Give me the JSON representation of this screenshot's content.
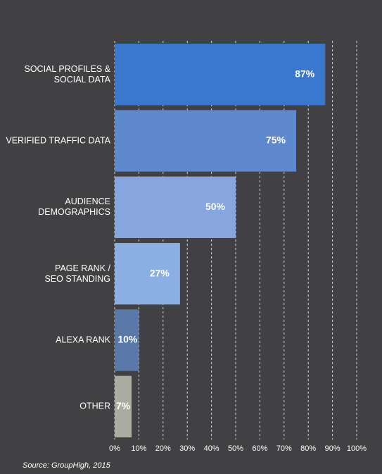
{
  "chart_data": {
    "type": "bar",
    "orientation": "horizontal",
    "categories": [
      "SOCIAL PROFILES &\nSOCIAL DATA",
      "VERIFIED TRAFFIC DATA",
      "AUDIENCE\nDEMOGRAPHICS",
      "PAGE RANK /\nSEO STANDING",
      "ALEXA RANK",
      "OTHER"
    ],
    "values": [
      87,
      75,
      50,
      27,
      10,
      7
    ],
    "value_labels": [
      "87%",
      "75%",
      "50%",
      "27%",
      "10%",
      "7%"
    ],
    "colors": [
      "#3a78cf",
      "#5f89cf",
      "#87a5de",
      "#8cafe3",
      "#5a79a9",
      "#a8ada0"
    ],
    "xlim": [
      0,
      100
    ],
    "xticks": [
      {
        "value": 0,
        "label": "0%"
      },
      {
        "value": 10,
        "label": "10%"
      },
      {
        "value": 20,
        "label": "20%"
      },
      {
        "value": 30,
        "label": "30%"
      },
      {
        "value": 40,
        "label": "40%"
      },
      {
        "value": 50,
        "label": "50%"
      },
      {
        "value": 60,
        "label": "60%"
      },
      {
        "value": 70,
        "label": "70%"
      },
      {
        "value": 80,
        "label": "80%"
      },
      {
        "value": 90,
        "label": "90%"
      },
      {
        "value": 100,
        "label": "100%"
      }
    ],
    "grid": true,
    "source": "Source: GroupHigh, 2015"
  }
}
